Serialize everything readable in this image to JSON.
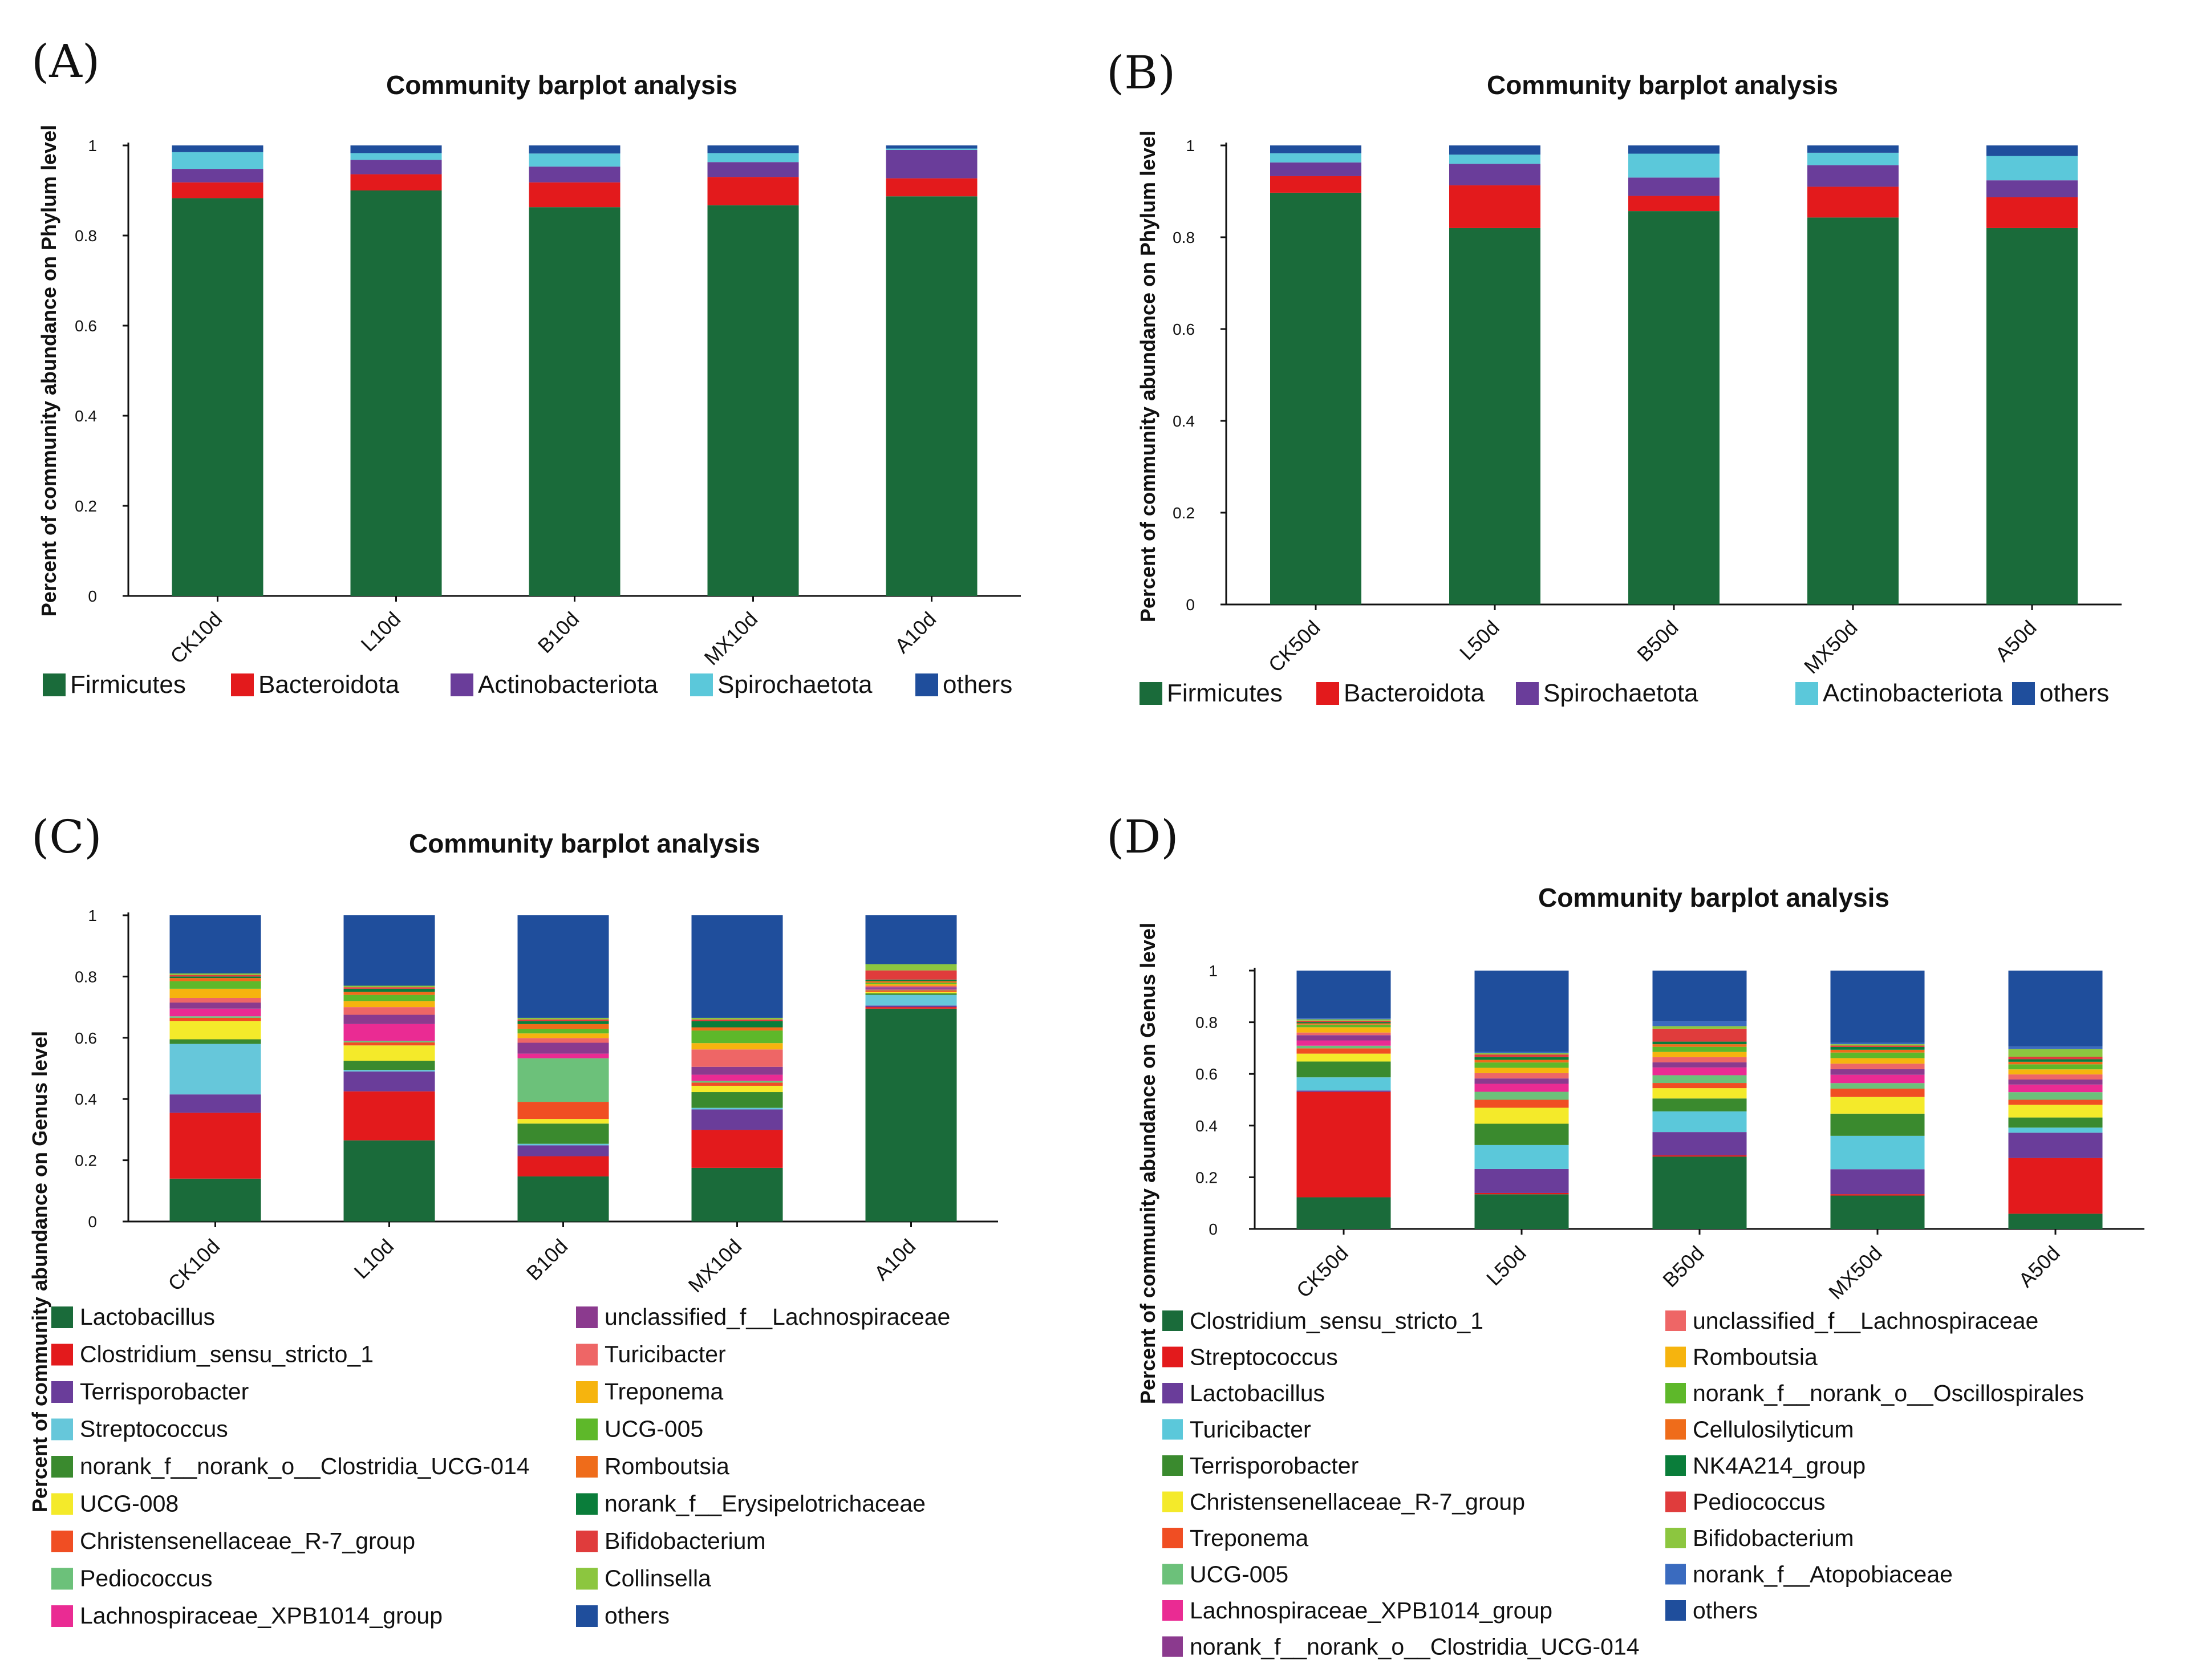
{
  "panels": {
    "A": {
      "label": "(A)"
    },
    "B": {
      "label": "(B)"
    },
    "C": {
      "label": "(C)"
    },
    "D": {
      "label": "(D)"
    }
  },
  "chart_data": [
    {
      "id": "A",
      "type": "bar",
      "stacked": true,
      "title": "Community barplot analysis",
      "ylabel": "Percent of community abundance on Phylum level",
      "xlabel": "",
      "ylim": [
        0,
        1
      ],
      "yticks": [
        "0",
        "0.2",
        "0.4",
        "0.6",
        "0.8",
        "1"
      ],
      "categories": [
        "CK10d",
        "L10d",
        "B10d",
        "MX10d",
        "A10d"
      ],
      "series": [
        {
          "name": "Firmicutes",
          "color": "#1a6b3a",
          "values": [
            0.883,
            0.9,
            0.863,
            0.867,
            0.887
          ]
        },
        {
          "name": "Bacteroidota",
          "color": "#e31a1c",
          "values": [
            0.035,
            0.036,
            0.055,
            0.063,
            0.04
          ]
        },
        {
          "name": "Actinobacteriota",
          "color": "#6a3d9a",
          "values": [
            0.03,
            0.032,
            0.035,
            0.033,
            0.063
          ]
        },
        {
          "name": "Spirochaetota",
          "color": "#5bc8da",
          "values": [
            0.037,
            0.015,
            0.029,
            0.02,
            0.003
          ]
        },
        {
          "name": "others",
          "color": "#1f4e9c",
          "values": [
            0.015,
            0.017,
            0.018,
            0.017,
            0.007
          ]
        }
      ]
    },
    {
      "id": "B",
      "type": "bar",
      "stacked": true,
      "title": "Community barplot analysis",
      "ylabel": "Percent of community abundance on Phylum level",
      "xlabel": "",
      "ylim": [
        0,
        1
      ],
      "yticks": [
        "0",
        "0.2",
        "0.4",
        "0.6",
        "0.8",
        "1"
      ],
      "categories": [
        "CK50d",
        "L50d",
        "B50d",
        "MX50d",
        "A50d"
      ],
      "series": [
        {
          "name": "Firmicutes",
          "color": "#1a6b3a",
          "values": [
            0.897,
            0.82,
            0.857,
            0.843,
            0.82
          ]
        },
        {
          "name": "Bacteroidota",
          "color": "#e31a1c",
          "values": [
            0.036,
            0.093,
            0.033,
            0.067,
            0.067
          ]
        },
        {
          "name": "Spirochaetota",
          "color": "#6a3d9a",
          "values": [
            0.03,
            0.047,
            0.04,
            0.047,
            0.037
          ]
        },
        {
          "name": "Actinobacteriota",
          "color": "#5bc8da",
          "values": [
            0.02,
            0.02,
            0.052,
            0.027,
            0.053
          ]
        },
        {
          "name": "others",
          "color": "#1f4e9c",
          "values": [
            0.017,
            0.02,
            0.018,
            0.016,
            0.023
          ]
        }
      ]
    },
    {
      "id": "C",
      "type": "bar",
      "stacked": true,
      "title": "Community barplot analysis",
      "ylabel": "Percent of community abundance on Genus level",
      "xlabel": "",
      "ylim": [
        0,
        1
      ],
      "yticks": [
        "0",
        "0.2",
        "0.4",
        "0.6",
        "0.8",
        "1"
      ],
      "categories": [
        "CK10d",
        "L10d",
        "B10d",
        "MX10d",
        "A10d"
      ],
      "series": [
        {
          "name": "Lactobacillus",
          "color": "#1a6b3a",
          "values": [
            0.14,
            0.265,
            0.145,
            0.17,
            0.695
          ]
        },
        {
          "name": "Clostridium_sensu_stricto_1",
          "color": "#e31a1c",
          "values": [
            0.215,
            0.16,
            0.065,
            0.12,
            0.005
          ]
        },
        {
          "name": "Terrisporobacter",
          "color": "#6a3d9a",
          "values": [
            0.06,
            0.065,
            0.035,
            0.065,
            0.005
          ]
        },
        {
          "name": "Streptococcus",
          "color": "#66c7da",
          "values": [
            0.165,
            0.005,
            0.005,
            0.005,
            0.035
          ]
        },
        {
          "name": "norank_f__norank_o__Clostridia_UCG-014",
          "color": "#3a8a2e",
          "values": [
            0.015,
            0.03,
            0.065,
            0.05,
            0.005
          ]
        },
        {
          "name": "UCG-008",
          "color": "#f4ea2a",
          "values": [
            0.06,
            0.05,
            0.015,
            0.02,
            0.005
          ]
        },
        {
          "name": "Christensenellaceae_R-7_group",
          "color": "#f04e23",
          "values": [
            0.01,
            0.01,
            0.055,
            0.01,
            0.005
          ]
        },
        {
          "name": "Pediococcus",
          "color": "#6cc17a",
          "values": [
            0.005,
            0.005,
            0.14,
            0.005,
            0.002
          ]
        },
        {
          "name": "Lachnospiraceae_XPB1014_group",
          "color": "#ea2b93",
          "values": [
            0.025,
            0.055,
            0.015,
            0.02,
            0.003
          ]
        },
        {
          "name": "unclassified_f__Lachnospiraceae",
          "color": "#8b3a8e",
          "values": [
            0.02,
            0.03,
            0.035,
            0.025,
            0.005
          ]
        },
        {
          "name": "Turicibacter",
          "color": "#ee6666",
          "values": [
            0.015,
            0.025,
            0.015,
            0.055,
            0.005
          ]
        },
        {
          "name": "Treponema",
          "color": "#f6b40e",
          "values": [
            0.03,
            0.02,
            0.015,
            0.02,
            0.005
          ]
        },
        {
          "name": "UCG-005",
          "color": "#5eb82a",
          "values": [
            0.025,
            0.02,
            0.015,
            0.04,
            0.005
          ]
        },
        {
          "name": "Romboutsia",
          "color": "#ef6c1a",
          "values": [
            0.01,
            0.01,
            0.015,
            0.01,
            0.005
          ]
        },
        {
          "name": "norank_f__Erysipelotrichaceae",
          "color": "#0a7d3a",
          "values": [
            0.005,
            0.01,
            0.01,
            0.02,
            0.005
          ]
        },
        {
          "name": "Bifidobacterium",
          "color": "#e03c3c",
          "values": [
            0.005,
            0.005,
            0.005,
            0.005,
            0.03
          ]
        },
        {
          "name": "Collinsella",
          "color": "#8cc63f",
          "values": [
            0.005,
            0.005,
            0.005,
            0.005,
            0.02
          ]
        },
        {
          "name": "others",
          "color": "#1f4e9c",
          "values": [
            0.19,
            0.23,
            0.33,
            0.325,
            0.16
          ]
        }
      ]
    },
    {
      "id": "D",
      "type": "bar",
      "stacked": true,
      "title": "Community barplot analysis",
      "ylabel": "Percent of community abundance on Genus level",
      "xlabel": "",
      "ylim": [
        0,
        1
      ],
      "yticks": [
        "0",
        "0.2",
        "0.4",
        "0.6",
        "0.8",
        "1"
      ],
      "categories": [
        "CK50d",
        "L50d",
        "B50d",
        "MX50d",
        "A50d"
      ],
      "series": [
        {
          "name": "Clostridium_sensu_stricto_1",
          "color": "#1a6b3a",
          "values": [
            0.12,
            0.13,
            0.28,
            0.12,
            0.06
          ]
        },
        {
          "name": "Streptococcus",
          "color": "#e31a1c",
          "values": [
            0.4,
            0.005,
            0.005,
            0.005,
            0.22
          ]
        },
        {
          "name": "Lactobacillus",
          "color": "#6a3d9a",
          "values": [
            0.005,
            0.09,
            0.09,
            0.09,
            0.1
          ]
        },
        {
          "name": "Turicibacter",
          "color": "#5bc8da",
          "values": [
            0.05,
            0.09,
            0.08,
            0.12,
            0.02
          ]
        },
        {
          "name": "Terrisporobacter",
          "color": "#3a8a2e",
          "values": [
            0.06,
            0.08,
            0.05,
            0.08,
            0.04
          ]
        },
        {
          "name": "Christensenellaceae_R-7_group",
          "color": "#f4ea2a",
          "values": [
            0.03,
            0.06,
            0.04,
            0.06,
            0.05
          ]
        },
        {
          "name": "Treponema",
          "color": "#f04e23",
          "values": [
            0.02,
            0.03,
            0.02,
            0.03,
            0.02
          ]
        },
        {
          "name": "UCG-005",
          "color": "#6cc17a",
          "values": [
            0.01,
            0.03,
            0.03,
            0.02,
            0.03
          ]
        },
        {
          "name": "Lachnospiraceae_XPB1014_group",
          "color": "#ea2b93",
          "values": [
            0.02,
            0.03,
            0.03,
            0.03,
            0.03
          ]
        },
        {
          "name": "norank_f__norank_o__Clostridia_UCG-014",
          "color": "#8b3a8e",
          "values": [
            0.02,
            0.02,
            0.02,
            0.02,
            0.02
          ]
        },
        {
          "name": "unclassified_f__Lachnospiraceae",
          "color": "#ee6666",
          "values": [
            0.01,
            0.02,
            0.02,
            0.02,
            0.02
          ]
        },
        {
          "name": "Romboutsia",
          "color": "#f6b40e",
          "values": [
            0.02,
            0.02,
            0.02,
            0.02,
            0.02
          ]
        },
        {
          "name": "norank_f__norank_o__Oscillospirales",
          "color": "#5eb82a",
          "values": [
            0.01,
            0.02,
            0.02,
            0.02,
            0.02
          ]
        },
        {
          "name": "Cellulosilyticum",
          "color": "#ef6c1a",
          "values": [
            0.005,
            0.01,
            0.01,
            0.01,
            0.01
          ]
        },
        {
          "name": "NK4A214_group",
          "color": "#0a7d3a",
          "values": [
            0.005,
            0.01,
            0.01,
            0.01,
            0.01
          ]
        },
        {
          "name": "Pediococcus",
          "color": "#e03c3c",
          "values": [
            0.005,
            0.01,
            0.05,
            0.005,
            0.01
          ]
        },
        {
          "name": "Bifidobacterium",
          "color": "#8cc63f",
          "values": [
            0.005,
            0.005,
            0.01,
            0.005,
            0.03
          ]
        },
        {
          "name": "norank_f__Atopobiaceae",
          "color": "#3a6bbf",
          "values": [
            0.005,
            0.005,
            0.02,
            0.005,
            0.01
          ]
        },
        {
          "name": "others",
          "color": "#1f4e9c",
          "values": [
            0.18,
            0.305,
            0.195,
            0.26,
            0.3
          ]
        }
      ]
    }
  ]
}
